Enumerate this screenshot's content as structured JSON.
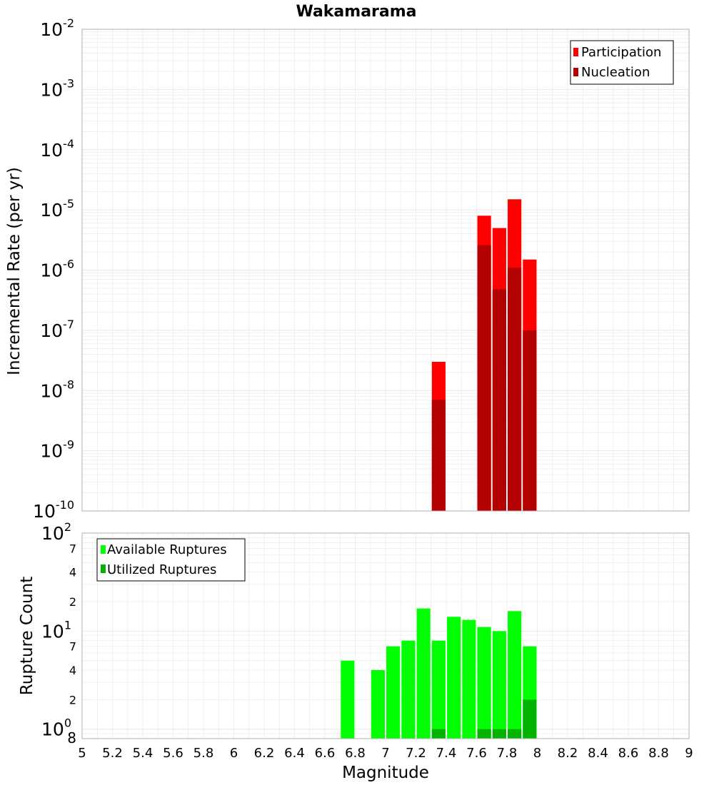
{
  "title": "Wakamarama",
  "x_axis": {
    "label": "Magnitude",
    "range": [
      5,
      9
    ],
    "ticks": [
      "5",
      "5.2",
      "5.4",
      "5.6",
      "5.8",
      "6",
      "6.2",
      "6.4",
      "6.6",
      "6.8",
      "7",
      "7.2",
      "7.4",
      "7.6",
      "7.8",
      "8",
      "8.2",
      "8.4",
      "8.6",
      "8.8",
      "9"
    ]
  },
  "colors": {
    "participation": "#ff0000",
    "nucleation": "#b30000",
    "available": "#00ff00",
    "utilized": "#00b300",
    "grid": "#e8e8e8",
    "frame": "#b0b0b0"
  },
  "chart_data": [
    {
      "type": "bar",
      "name": "rate",
      "ylabel": "Incremental Rate (per yr)",
      "yscale": "log",
      "ylim": [
        1e-10,
        0.01
      ],
      "ytick_exponents": [
        "-2",
        "-3",
        "-4",
        "-5",
        "-6",
        "-7",
        "-8",
        "-9",
        "-10"
      ],
      "ytick_base": "10",
      "bar_width": 0.09,
      "legend": {
        "position": "top-right",
        "entries": [
          "Participation",
          "Nucleation"
        ]
      },
      "series": [
        {
          "name": "Participation",
          "x": [
            7.35,
            7.65,
            7.75,
            7.85,
            7.95
          ],
          "values": [
            3e-08,
            8e-06,
            5e-06,
            1.5e-05,
            1.5e-06
          ]
        },
        {
          "name": "Nucleation",
          "x": [
            7.35,
            7.65,
            7.75,
            7.85,
            7.95
          ],
          "values": [
            7e-09,
            2.6e-06,
            4.8e-07,
            1.1e-06,
            1e-07
          ]
        }
      ]
    },
    {
      "type": "bar",
      "name": "count",
      "ylabel": "Rupture Count",
      "yscale": "log",
      "ylim": [
        0.8,
        100
      ],
      "major_ticks": [
        {
          "value": 1,
          "base": "10",
          "exp": "0"
        },
        {
          "value": 10,
          "base": "10",
          "exp": "1"
        },
        {
          "value": 100,
          "base": "10",
          "exp": "2"
        }
      ],
      "minor_ticks": [
        {
          "value": 0.8,
          "label": "8"
        },
        {
          "value": 2,
          "label": "2"
        },
        {
          "value": 4,
          "label": "4"
        },
        {
          "value": 7,
          "label": "7"
        },
        {
          "value": 20,
          "label": "2"
        },
        {
          "value": 40,
          "label": "4"
        },
        {
          "value": 70,
          "label": "7"
        }
      ],
      "bar_width": 0.09,
      "legend": {
        "position": "top-left",
        "entries": [
          "Available Ruptures",
          "Utilized Ruptures"
        ]
      },
      "series": [
        {
          "name": "Available Ruptures",
          "x": [
            6.75,
            6.95,
            7.05,
            7.15,
            7.25,
            7.35,
            7.45,
            7.55,
            7.65,
            7.75,
            7.85,
            7.95
          ],
          "values": [
            5,
            4,
            7,
            8,
            17,
            8,
            14,
            13,
            11,
            10,
            16,
            7
          ]
        },
        {
          "name": "Utilized Ruptures",
          "x": [
            7.35,
            7.65,
            7.75,
            7.85,
            7.95
          ],
          "values": [
            1,
            1,
            1,
            1,
            2
          ]
        }
      ]
    }
  ]
}
